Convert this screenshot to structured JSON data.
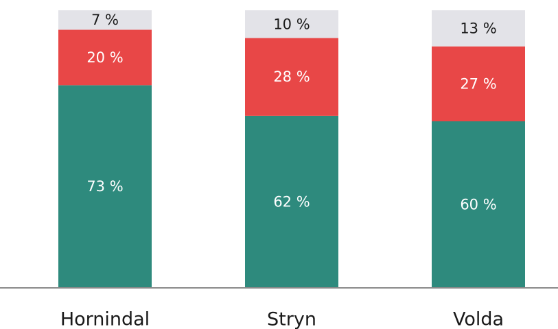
{
  "chart_data": {
    "type": "bar",
    "stacked": true,
    "percent": true,
    "categories": [
      "Hornindal",
      "Stryn",
      "Volda"
    ],
    "series": [
      {
        "values": [
          73,
          62,
          60
        ],
        "labels": [
          "73 %",
          "62 %",
          "60 %"
        ],
        "color": "#2e8a7d",
        "label_color": "#ffffff"
      },
      {
        "values": [
          20,
          28,
          27
        ],
        "labels": [
          "20 %",
          "28 %",
          "27 %"
        ],
        "color": "#e84747",
        "label_color": "#ffffff"
      },
      {
        "values": [
          7,
          10,
          13
        ],
        "labels": [
          "7 %",
          "10 %",
          "13 %"
        ],
        "color": "#e3e3e8",
        "label_color": "#1a1a1a"
      }
    ],
    "ylim": [
      0,
      100
    ],
    "title": "",
    "xlabel": "",
    "ylabel": "",
    "grid": false,
    "legend": "none"
  }
}
